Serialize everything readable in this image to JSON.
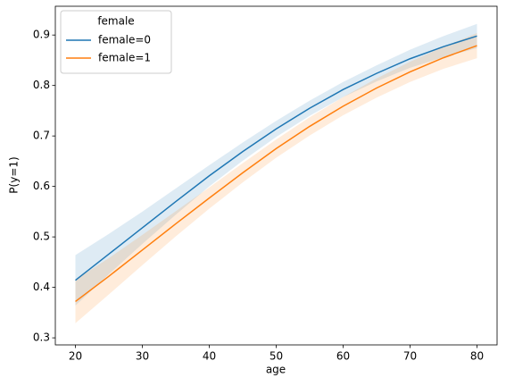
{
  "chart_data": {
    "type": "line",
    "xlabel": "age",
    "ylabel": "P(y=1)",
    "legend_title": "female",
    "legend": "upper left",
    "x": [
      20,
      25,
      30,
      35,
      40,
      45,
      50,
      55,
      60,
      65,
      70,
      75,
      80
    ],
    "series": [
      {
        "name": "female=0",
        "color": "#1f77b4",
        "values": [
          0.414,
          0.466,
          0.518,
          0.57,
          0.621,
          0.669,
          0.714,
          0.755,
          0.792,
          0.824,
          0.853,
          0.877,
          0.898
        ],
        "lower": [
          0.364,
          0.426,
          0.486,
          0.544,
          0.6,
          0.651,
          0.698,
          0.74,
          0.777,
          0.808,
          0.835,
          0.856,
          0.874
        ],
        "upper": [
          0.464,
          0.506,
          0.55,
          0.596,
          0.642,
          0.687,
          0.73,
          0.77,
          0.807,
          0.84,
          0.871,
          0.898,
          0.922
        ]
      },
      {
        "name": "female=1",
        "color": "#ff7f0e",
        "values": [
          0.372,
          0.422,
          0.474,
          0.526,
          0.577,
          0.627,
          0.675,
          0.719,
          0.759,
          0.795,
          0.827,
          0.855,
          0.879
        ],
        "lower": [
          0.329,
          0.386,
          0.444,
          0.501,
          0.556,
          0.608,
          0.657,
          0.701,
          0.741,
          0.776,
          0.807,
          0.833,
          0.854
        ],
        "upper": [
          0.415,
          0.458,
          0.504,
          0.551,
          0.598,
          0.646,
          0.693,
          0.737,
          0.777,
          0.814,
          0.847,
          0.877,
          0.904
        ]
      }
    ],
    "xlim": [
      17,
      83
    ],
    "xticks": [
      20,
      30,
      40,
      50,
      60,
      70,
      80
    ],
    "ylim": [
      0.286,
      0.957
    ],
    "yticks": [
      0.3,
      0.4,
      0.5,
      0.6,
      0.7,
      0.8,
      0.9
    ],
    "grid": false
  }
}
